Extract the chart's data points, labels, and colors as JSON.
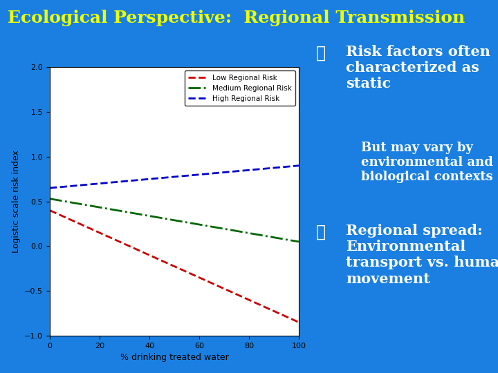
{
  "title": "Ecological Perspective:  Regional Transmission",
  "title_color": "#EEFF00",
  "bg_color": "#1A7FE0",
  "plot_bg_color": "#FFFFFF",
  "title_fontsize": 18,
  "xlabel": "% drinking treated water",
  "ylabel": "Logistic scale risk index",
  "xlim": [
    0,
    100
  ],
  "ylim": [
    -1.0,
    2.0
  ],
  "yticks": [
    -1.0,
    -0.5,
    0.0,
    0.5,
    1.0,
    1.5,
    2.0
  ],
  "xticks": [
    0,
    20,
    40,
    60,
    80,
    100
  ],
  "lines": [
    {
      "label": "Low Regional Risk",
      "color": "#CC0000",
      "linestyle": "--",
      "x": [
        0,
        100
      ],
      "y": [
        0.4,
        -0.85
      ]
    },
    {
      "label": "Medium Regional Risk",
      "color": "#006600",
      "linestyle": "-.",
      "x": [
        0,
        100
      ],
      "y": [
        0.53,
        0.05
      ]
    },
    {
      "label": "High Regional Risk",
      "color": "#0000CC",
      "linestyle": "--",
      "x": [
        0,
        100
      ],
      "y": [
        0.65,
        0.9
      ]
    }
  ],
  "bullet1_title": "Risk factors often\ncharacterized as\nstatic",
  "bullet1_sub": "But may vary by\nenvironmental and\nbiological contexts",
  "bullet2_title": "Regional spread:\nEnvironmental\ntransport vs. human\nmovement",
  "text_color": "#FFFFFF",
  "bullet_fontsize": 15,
  "sub_fontsize": 13,
  "bullet_symbol": "❖"
}
